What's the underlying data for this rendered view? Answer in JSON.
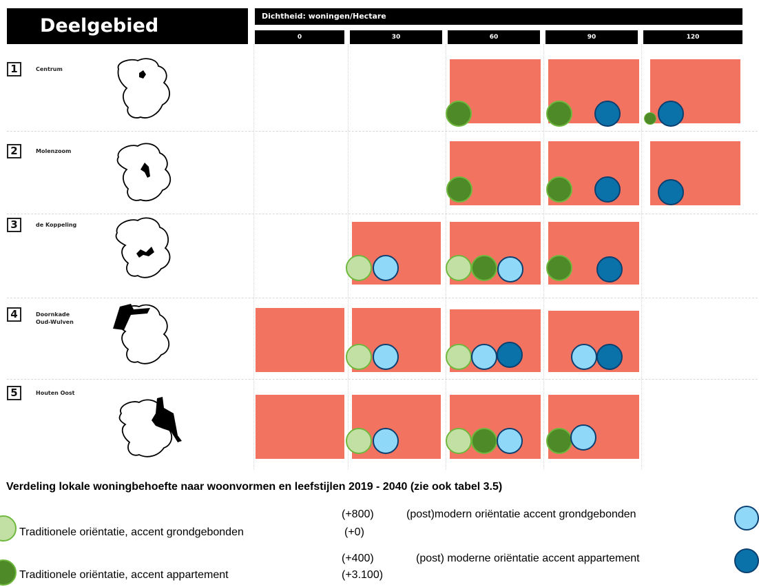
{
  "header": {
    "title": "Deelgebied",
    "subtitle": "Dichtheid: woningen/Hectare",
    "ticks": [
      "0",
      "30",
      "60",
      "90",
      "120"
    ]
  },
  "colors": {
    "box": "#f2735f",
    "trad_grond": "#c3e0a4",
    "trad_app": "#4e8a28",
    "modern_grond": "#8fd8f8",
    "modern_app": "#0a72a8"
  },
  "rows": [
    {
      "num": "1",
      "name": "Centrum"
    },
    {
      "num": "2",
      "name": "Molenzoom"
    },
    {
      "num": "3",
      "name": "de Koppeling"
    },
    {
      "num": "4",
      "name": "Doornkade Oud-Wulven"
    },
    {
      "num": "5",
      "name": "Houten Oost"
    }
  ],
  "icons": [
    "map-centrum-icon",
    "map-molenzoom-icon",
    "map-koppeling-icon",
    "map-doornkade-icon",
    "map-houten-oost-icon"
  ],
  "caption": "Verdeling lokale woningbehoefte naar woonvormen en leefstijlen 2019 - 2040 (zie ook tabel 3.5)",
  "legend": {
    "modern_grond": {
      "value": "(+800)",
      "label": "(post)modern oriëntatie accent grondgebonden"
    },
    "trad_grond": {
      "label": "Traditionele oriëntatie, accent grondgebonden",
      "value": "(+0)"
    },
    "modern_app": {
      "value": "(+400)",
      "label": "(post) moderne oriëntatie accent appartement"
    },
    "trad_app": {
      "label": "Traditionele oriëntatie, accent appartement",
      "value": "(+3.100)"
    }
  }
}
